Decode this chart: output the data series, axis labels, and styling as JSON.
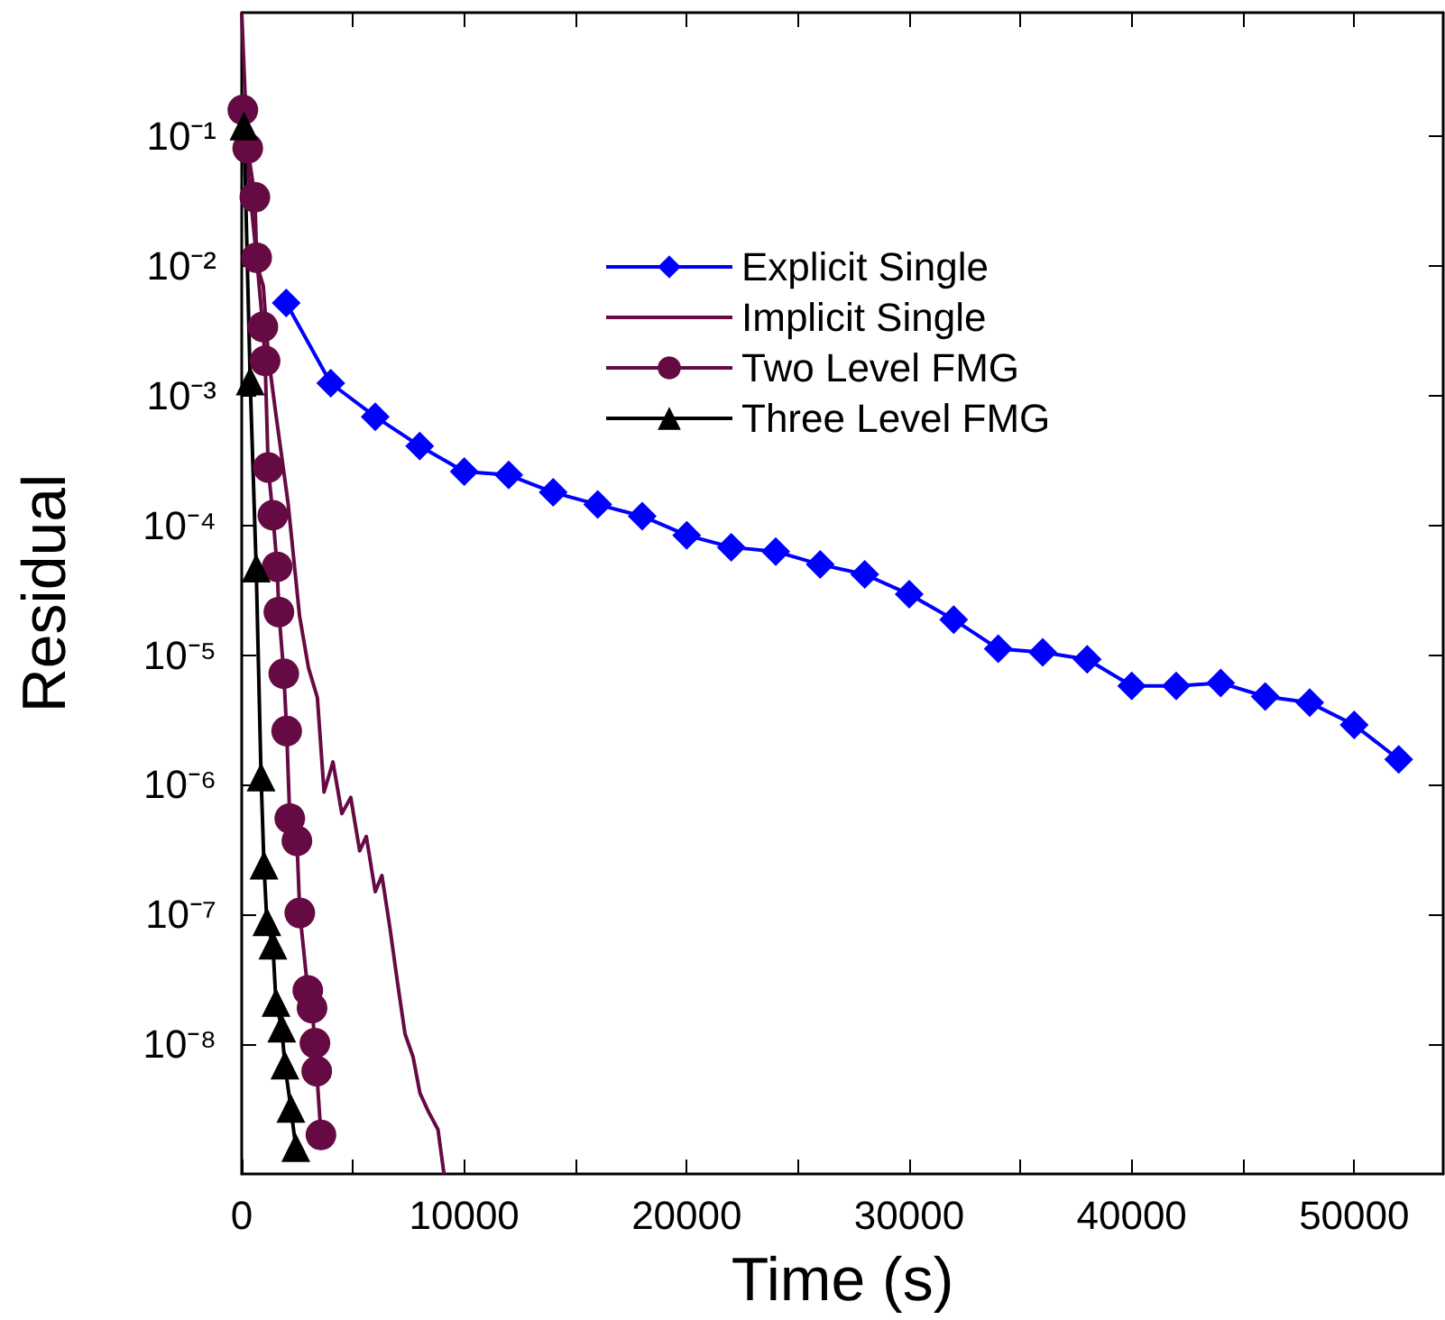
{
  "chart_data": {
    "type": "line",
    "xlabel": "Time (s)",
    "ylabel": "Residual",
    "xlim": [
      0,
      54000
    ],
    "xticks": [
      0,
      {
        "value": 5000,
        "label": null
      },
      10000,
      {
        "value": 15000,
        "label": null
      },
      20000,
      {
        "value": 25000,
        "label": null
      },
      30000,
      {
        "value": 35000,
        "label": null
      },
      40000,
      {
        "value": 45000,
        "label": null
      },
      50000
    ],
    "ylim": [
      1e-09,
      0.9
    ],
    "yticks": [
      {
        "value": 1e-08,
        "label": "10⁻⁸"
      },
      {
        "value": 1e-07,
        "label": "10⁻⁷"
      },
      {
        "value": 1e-06,
        "label": "10⁻⁶"
      },
      {
        "value": 1e-05,
        "label": "10⁻⁵"
      },
      {
        "value": 0.0001,
        "label": "10⁻⁴"
      },
      {
        "value": 0.001,
        "label": "10⁻³"
      },
      {
        "value": 0.01,
        "label": "10⁻²"
      },
      {
        "value": 0.1,
        "label": "10⁻¹"
      }
    ],
    "log": "y",
    "grid": false,
    "legend": "top",
    "series": [
      {
        "name": "Explicit Single",
        "color": "#0000ff",
        "marker": "diamond",
        "x": [
          2000,
          4000,
          6000,
          8000,
          10000,
          12000,
          14000,
          16000,
          18000,
          20000,
          22000,
          24000,
          26000,
          28000,
          30000,
          32000,
          34000,
          36000,
          38000,
          40000,
          42000,
          44000,
          46000,
          48000,
          50000,
          52000
        ],
        "values": [
          0.0052,
          0.00125,
          0.00069,
          0.00041,
          0.00026,
          0.000245,
          0.00018,
          0.000145,
          0.000118,
          8.4e-05,
          6.8e-05,
          6.3e-05,
          5e-05,
          4.2e-05,
          2.95e-05,
          1.88e-05,
          1.12e-05,
          1.05e-05,
          9.3e-06,
          5.8e-06,
          5.8e-06,
          6.1e-06,
          4.8e-06,
          4.3e-06,
          2.9e-06,
          1.57e-06
        ]
      },
      {
        "name": "Implicit Single",
        "color": "#660a44",
        "marker": "none",
        "x": [
          0,
          300,
          700,
          970,
          1200,
          1500,
          2080,
          2600,
          3000,
          3400,
          3700,
          4100,
          4500,
          4900,
          5300,
          5600,
          6000,
          6300,
          6660,
          7000,
          7340,
          7700,
          8010,
          8400,
          8820,
          9090
        ],
        "values": [
          0.9,
          0.05,
          0.01,
          0.007,
          0.002,
          0.0008,
          0.00015,
          2e-05,
          8e-06,
          4.7e-06,
          8.8e-07,
          1.5e-06,
          6e-07,
          8e-07,
          3.1e-07,
          4e-07,
          1.5e-07,
          2e-07,
          7.9e-08,
          3e-08,
          1.2e-08,
          8e-09,
          4.2e-09,
          3e-09,
          2.2e-09,
          1e-09
        ]
      },
      {
        "name": "Two Level FMG",
        "color": "#660a44",
        "marker": "circle",
        "x": [
          50,
          270,
          590,
          670,
          950,
          1050,
          1190,
          1400,
          1590,
          1670,
          1890,
          2020,
          2160,
          2480,
          2610,
          2970,
          3160,
          3290,
          3370,
          3560
        ],
        "values": [
          0.16,
          0.081,
          0.034,
          0.0116,
          0.0034,
          0.00186,
          0.00028,
          0.00012,
          4.8e-05,
          2.15e-05,
          7.2e-06,
          2.6e-06,
          5.5e-07,
          3.7e-07,
          1.03e-07,
          2.6e-08,
          1.9e-08,
          1.02e-08,
          6.2e-09,
          2e-09
        ]
      },
      {
        "name": "Three Level FMG",
        "color": "#000000",
        "marker": "triangle",
        "x": [
          100,
          380,
          650,
          870,
          1000,
          1130,
          1400,
          1540,
          1800,
          1940,
          2210,
          2430
        ],
        "values": [
          0.12,
          0.0013,
          4.7e-05,
          1.15e-06,
          2.4e-07,
          8.8e-08,
          5.8e-08,
          2.1e-08,
          1.33e-08,
          6.9e-09,
          3.2e-09,
          1.6e-09
        ]
      }
    ]
  }
}
